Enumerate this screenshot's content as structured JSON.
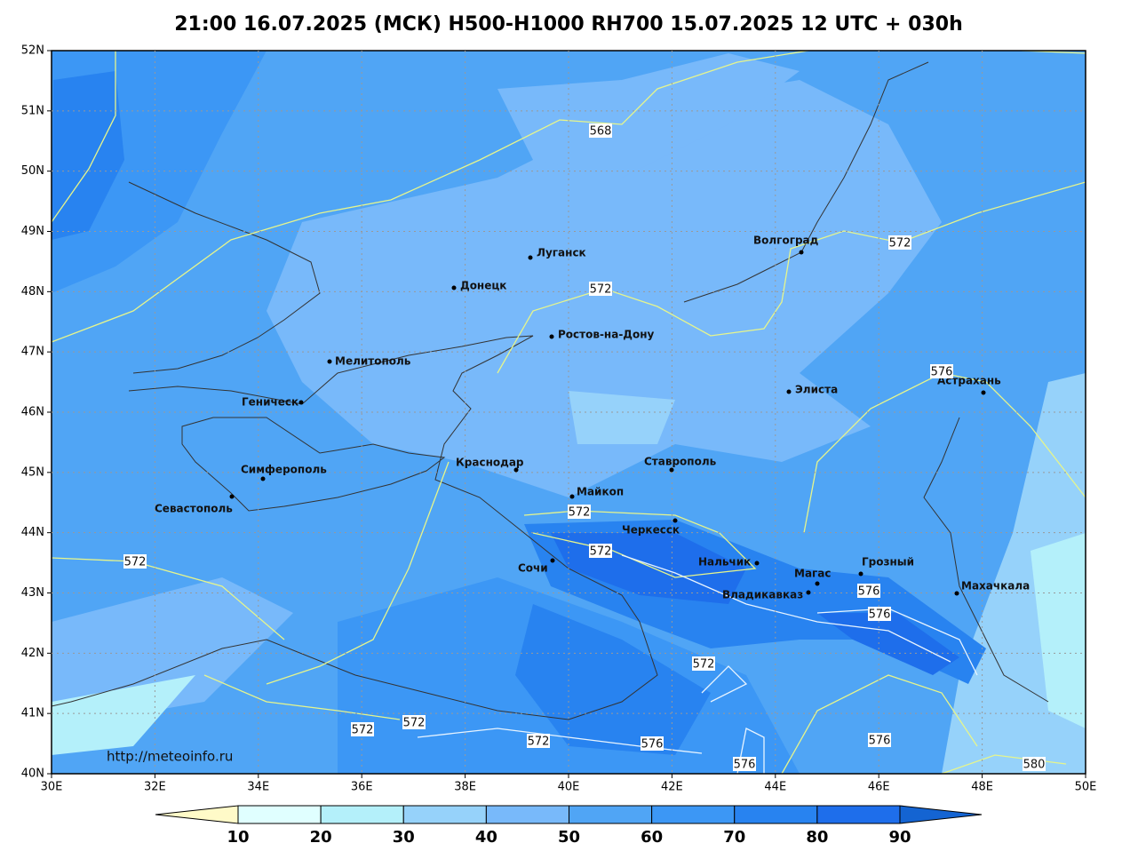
{
  "title": "21:00 16.07.2025 (МСК) H500-H1000 RH700 15.07.2025 12 UTC + 030h",
  "map": {
    "lon_ticks": [
      {
        "value": 30,
        "label": "30E"
      },
      {
        "value": 32,
        "label": "32E"
      },
      {
        "value": 34,
        "label": "34E"
      },
      {
        "value": 36,
        "label": "36E"
      },
      {
        "value": 38,
        "label": "38E"
      },
      {
        "value": 40,
        "label": "40E"
      },
      {
        "value": 42,
        "label": "42E"
      },
      {
        "value": 44,
        "label": "44E"
      },
      {
        "value": 46,
        "label": "46E"
      },
      {
        "value": 48,
        "label": "48E"
      },
      {
        "value": 50,
        "label": "50E"
      }
    ],
    "lat_ticks": [
      {
        "value": 40,
        "label": "40N"
      },
      {
        "value": 41,
        "label": "41N"
      },
      {
        "value": 42,
        "label": "42N"
      },
      {
        "value": 43,
        "label": "43N"
      },
      {
        "value": 44,
        "label": "44N"
      },
      {
        "value": 45,
        "label": "45N"
      },
      {
        "value": 46,
        "label": "46N"
      },
      {
        "value": 47,
        "label": "47N"
      },
      {
        "value": 48,
        "label": "48N"
      },
      {
        "value": 49,
        "label": "49N"
      },
      {
        "value": 50,
        "label": "50N"
      },
      {
        "value": 51,
        "label": "51N"
      },
      {
        "value": 52,
        "label": "52N"
      }
    ],
    "cities": [
      "Луганск",
      "Донецк",
      "Волгоград",
      "Ростов-на-Дону",
      "Мелитополь",
      "Геническ",
      "Элиста",
      "Астрахань",
      "Симферополь",
      "Севастополь",
      "Краснодар",
      "Ставрополь",
      "Майкоп",
      "Черкесск",
      "Сочи",
      "Нальчик",
      "Магас",
      "Грозный",
      "Владикавказ",
      "Махачкала"
    ],
    "contour_labels": [
      568,
      572,
      572,
      576,
      572,
      572,
      572,
      576,
      576,
      572,
      572,
      572,
      572,
      576,
      576,
      576,
      580
    ],
    "contour_color": "#e6f58c",
    "credit": "http://meteoinfo.ru"
  },
  "colorbar": {
    "ticks": [
      10,
      20,
      30,
      40,
      50,
      60,
      70,
      80,
      90
    ],
    "colors": [
      "#fffac8",
      "#e0ffff",
      "#b4f0fa",
      "#96d2fa",
      "#78b9fa",
      "#50a5f5",
      "#3c97f5",
      "#2883f0",
      "#1e6eeb",
      "#1464d2"
    ]
  }
}
